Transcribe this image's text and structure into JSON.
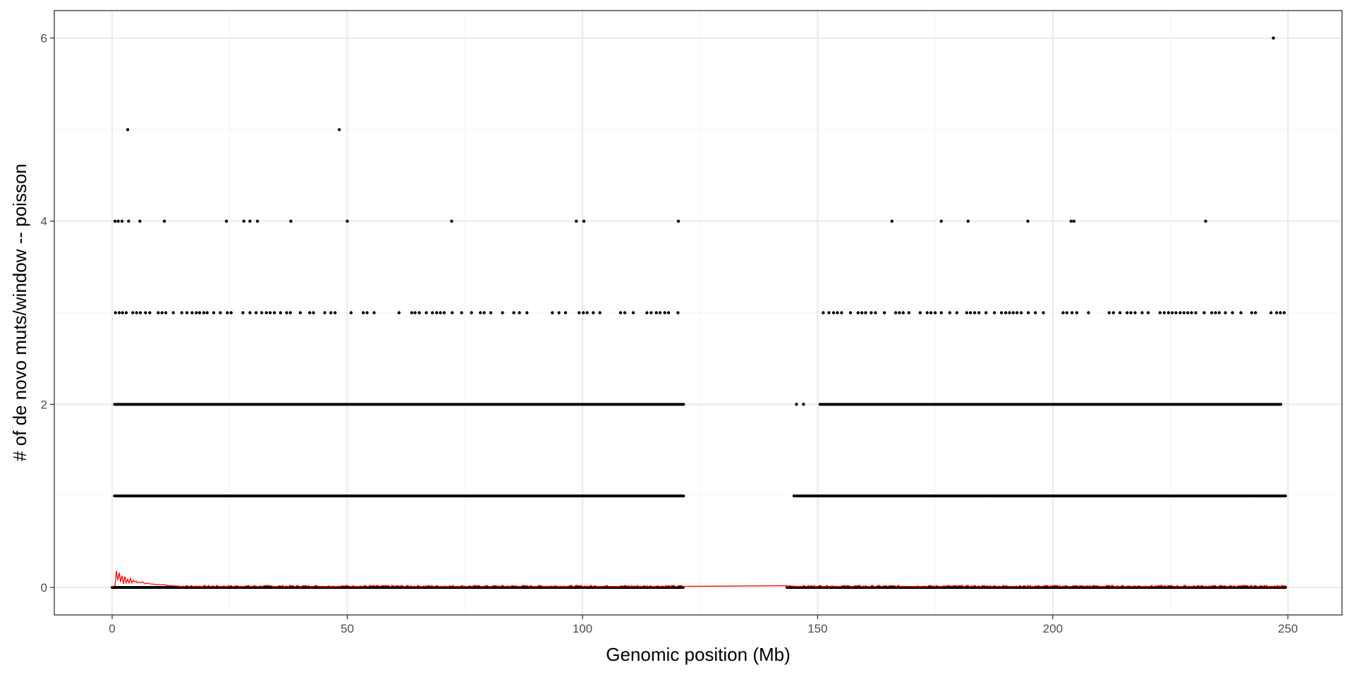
{
  "chart_data": {
    "type": "scatter",
    "title": "",
    "xlabel": "Genomic position (Mb)",
    "ylabel": "# of de novo muts/window -- poisson",
    "xlim": [
      -12.3,
      261.5
    ],
    "ylim": [
      -0.3,
      6.3
    ],
    "x_ticks": [
      0,
      50,
      100,
      150,
      200,
      250
    ],
    "y_ticks": [
      0,
      2,
      4,
      6
    ],
    "grid": true,
    "legend": "none",
    "colors": {
      "points": "#000000",
      "line": "#ff0000",
      "panel_border": "#333333",
      "grid_major": "#ebebeb",
      "grid_minor": "#f5f5f5"
    },
    "points_band_segments": [
      {
        "y": 0,
        "ranges": [
          [
            0,
            121.5
          ],
          [
            143.5,
            249.5
          ]
        ]
      },
      {
        "y": 1,
        "ranges": [
          [
            0.5,
            121.5
          ],
          [
            145.5,
            249.5
          ]
        ]
      },
      {
        "y": 2,
        "ranges": [
          [
            0.5,
            121.5
          ],
          [
            150.5,
            248.5
          ]
        ]
      }
    ],
    "points": [
      {
        "x": 147.0,
        "y": 2
      },
      {
        "x": 145.5,
        "y": 2
      },
      {
        "x": 145.0,
        "y": 1
      },
      {
        "x": 0.7,
        "y": 3
      },
      {
        "x": 1.5,
        "y": 3
      },
      {
        "x": 2.2,
        "y": 3
      },
      {
        "x": 3.0,
        "y": 3
      },
      {
        "x": 4.4,
        "y": 3
      },
      {
        "x": 5.2,
        "y": 3
      },
      {
        "x": 6.0,
        "y": 3
      },
      {
        "x": 7.1,
        "y": 3
      },
      {
        "x": 8.0,
        "y": 3
      },
      {
        "x": 9.8,
        "y": 3
      },
      {
        "x": 10.6,
        "y": 3
      },
      {
        "x": 11.4,
        "y": 3
      },
      {
        "x": 13.0,
        "y": 3
      },
      {
        "x": 14.8,
        "y": 3
      },
      {
        "x": 15.9,
        "y": 3
      },
      {
        "x": 17.0,
        "y": 3
      },
      {
        "x": 17.9,
        "y": 3
      },
      {
        "x": 18.6,
        "y": 3
      },
      {
        "x": 19.5,
        "y": 3
      },
      {
        "x": 20.2,
        "y": 3
      },
      {
        "x": 21.6,
        "y": 3
      },
      {
        "x": 23.0,
        "y": 3
      },
      {
        "x": 24.5,
        "y": 3
      },
      {
        "x": 25.3,
        "y": 3
      },
      {
        "x": 27.8,
        "y": 3
      },
      {
        "x": 29.3,
        "y": 3
      },
      {
        "x": 30.6,
        "y": 3
      },
      {
        "x": 31.8,
        "y": 3
      },
      {
        "x": 32.8,
        "y": 3
      },
      {
        "x": 33.6,
        "y": 3
      },
      {
        "x": 34.5,
        "y": 3
      },
      {
        "x": 35.8,
        "y": 3
      },
      {
        "x": 37.1,
        "y": 3
      },
      {
        "x": 37.9,
        "y": 3
      },
      {
        "x": 40.0,
        "y": 3
      },
      {
        "x": 42.0,
        "y": 3
      },
      {
        "x": 42.8,
        "y": 3
      },
      {
        "x": 45.2,
        "y": 3
      },
      {
        "x": 46.5,
        "y": 3
      },
      {
        "x": 47.4,
        "y": 3
      },
      {
        "x": 50.8,
        "y": 3
      },
      {
        "x": 53.4,
        "y": 3
      },
      {
        "x": 54.2,
        "y": 3
      },
      {
        "x": 55.7,
        "y": 3
      },
      {
        "x": 61.0,
        "y": 3
      },
      {
        "x": 63.7,
        "y": 3
      },
      {
        "x": 64.4,
        "y": 3
      },
      {
        "x": 65.3,
        "y": 3
      },
      {
        "x": 66.8,
        "y": 3
      },
      {
        "x": 68.1,
        "y": 3
      },
      {
        "x": 69.0,
        "y": 3
      },
      {
        "x": 69.8,
        "y": 3
      },
      {
        "x": 70.6,
        "y": 3
      },
      {
        "x": 72.3,
        "y": 3
      },
      {
        "x": 74.3,
        "y": 3
      },
      {
        "x": 76.4,
        "y": 3
      },
      {
        "x": 78.3,
        "y": 3
      },
      {
        "x": 79.1,
        "y": 3
      },
      {
        "x": 80.5,
        "y": 3
      },
      {
        "x": 83.0,
        "y": 3
      },
      {
        "x": 85.4,
        "y": 3
      },
      {
        "x": 86.6,
        "y": 3
      },
      {
        "x": 88.2,
        "y": 3
      },
      {
        "x": 93.6,
        "y": 3
      },
      {
        "x": 95.0,
        "y": 3
      },
      {
        "x": 96.4,
        "y": 3
      },
      {
        "x": 99.3,
        "y": 3
      },
      {
        "x": 100.2,
        "y": 3
      },
      {
        "x": 101.0,
        "y": 3
      },
      {
        "x": 102.3,
        "y": 3
      },
      {
        "x": 103.7,
        "y": 3
      },
      {
        "x": 108.1,
        "y": 3
      },
      {
        "x": 109.0,
        "y": 3
      },
      {
        "x": 110.8,
        "y": 3
      },
      {
        "x": 113.7,
        "y": 3
      },
      {
        "x": 114.6,
        "y": 3
      },
      {
        "x": 115.7,
        "y": 3
      },
      {
        "x": 116.5,
        "y": 3
      },
      {
        "x": 117.5,
        "y": 3
      },
      {
        "x": 118.3,
        "y": 3
      },
      {
        "x": 120.3,
        "y": 3
      },
      {
        "x": 151.2,
        "y": 3
      },
      {
        "x": 152.4,
        "y": 3
      },
      {
        "x": 153.4,
        "y": 3
      },
      {
        "x": 154.2,
        "y": 3
      },
      {
        "x": 155.1,
        "y": 3
      },
      {
        "x": 157.0,
        "y": 3
      },
      {
        "x": 158.6,
        "y": 3
      },
      {
        "x": 159.4,
        "y": 3
      },
      {
        "x": 160.2,
        "y": 3
      },
      {
        "x": 161.4,
        "y": 3
      },
      {
        "x": 162.3,
        "y": 3
      },
      {
        "x": 164.2,
        "y": 3
      },
      {
        "x": 166.6,
        "y": 3
      },
      {
        "x": 167.4,
        "y": 3
      },
      {
        "x": 168.2,
        "y": 3
      },
      {
        "x": 169.4,
        "y": 3
      },
      {
        "x": 171.8,
        "y": 3
      },
      {
        "x": 173.3,
        "y": 3
      },
      {
        "x": 174.1,
        "y": 3
      },
      {
        "x": 175.0,
        "y": 3
      },
      {
        "x": 176.3,
        "y": 3
      },
      {
        "x": 178.1,
        "y": 3
      },
      {
        "x": 179.6,
        "y": 3
      },
      {
        "x": 181.7,
        "y": 3
      },
      {
        "x": 182.5,
        "y": 3
      },
      {
        "x": 183.4,
        "y": 3
      },
      {
        "x": 184.3,
        "y": 3
      },
      {
        "x": 185.8,
        "y": 3
      },
      {
        "x": 187.6,
        "y": 3
      },
      {
        "x": 189.1,
        "y": 3
      },
      {
        "x": 190.0,
        "y": 3
      },
      {
        "x": 190.8,
        "y": 3
      },
      {
        "x": 191.6,
        "y": 3
      },
      {
        "x": 192.4,
        "y": 3
      },
      {
        "x": 193.3,
        "y": 3
      },
      {
        "x": 194.8,
        "y": 3
      },
      {
        "x": 196.3,
        "y": 3
      },
      {
        "x": 198.0,
        "y": 3
      },
      {
        "x": 202.2,
        "y": 3
      },
      {
        "x": 203.0,
        "y": 3
      },
      {
        "x": 204.1,
        "y": 3
      },
      {
        "x": 205.1,
        "y": 3
      },
      {
        "x": 207.6,
        "y": 3
      },
      {
        "x": 212.0,
        "y": 3
      },
      {
        "x": 212.9,
        "y": 3
      },
      {
        "x": 214.3,
        "y": 3
      },
      {
        "x": 215.8,
        "y": 3
      },
      {
        "x": 216.6,
        "y": 3
      },
      {
        "x": 217.5,
        "y": 3
      },
      {
        "x": 219.0,
        "y": 3
      },
      {
        "x": 220.3,
        "y": 3
      },
      {
        "x": 222.8,
        "y": 3
      },
      {
        "x": 223.7,
        "y": 3
      },
      {
        "x": 224.6,
        "y": 3
      },
      {
        "x": 225.4,
        "y": 3
      },
      {
        "x": 226.2,
        "y": 3
      },
      {
        "x": 227.1,
        "y": 3
      },
      {
        "x": 227.9,
        "y": 3
      },
      {
        "x": 228.7,
        "y": 3
      },
      {
        "x": 229.5,
        "y": 3
      },
      {
        "x": 230.4,
        "y": 3
      },
      {
        "x": 232.2,
        "y": 3
      },
      {
        "x": 233.8,
        "y": 3
      },
      {
        "x": 234.6,
        "y": 3
      },
      {
        "x": 235.4,
        "y": 3
      },
      {
        "x": 236.7,
        "y": 3
      },
      {
        "x": 238.2,
        "y": 3
      },
      {
        "x": 240.0,
        "y": 3
      },
      {
        "x": 242.3,
        "y": 3
      },
      {
        "x": 243.1,
        "y": 3
      },
      {
        "x": 246.4,
        "y": 3
      },
      {
        "x": 247.6,
        "y": 3
      },
      {
        "x": 248.4,
        "y": 3
      },
      {
        "x": 249.2,
        "y": 3
      },
      {
        "x": 0.6,
        "y": 4
      },
      {
        "x": 1.3,
        "y": 4
      },
      {
        "x": 2.1,
        "y": 4
      },
      {
        "x": 3.5,
        "y": 4
      },
      {
        "x": 5.9,
        "y": 4
      },
      {
        "x": 11.1,
        "y": 4
      },
      {
        "x": 24.3,
        "y": 4
      },
      {
        "x": 28.0,
        "y": 4
      },
      {
        "x": 29.3,
        "y": 4
      },
      {
        "x": 30.9,
        "y": 4
      },
      {
        "x": 38.0,
        "y": 4
      },
      {
        "x": 50.0,
        "y": 4
      },
      {
        "x": 72.2,
        "y": 4
      },
      {
        "x": 98.7,
        "y": 4
      },
      {
        "x": 100.3,
        "y": 4
      },
      {
        "x": 120.4,
        "y": 4
      },
      {
        "x": 165.8,
        "y": 4
      },
      {
        "x": 176.3,
        "y": 4
      },
      {
        "x": 182.0,
        "y": 4
      },
      {
        "x": 194.7,
        "y": 4
      },
      {
        "x": 203.9,
        "y": 4
      },
      {
        "x": 204.5,
        "y": 4
      },
      {
        "x": 232.5,
        "y": 4
      },
      {
        "x": 3.3,
        "y": 5
      },
      {
        "x": 48.3,
        "y": 5
      },
      {
        "x": 246.9,
        "y": 6
      }
    ],
    "line_series": {
      "name": "",
      "x": [
        0.0,
        0.6,
        0.9,
        1.2,
        1.5,
        1.8,
        2.1,
        2.4,
        2.7,
        3.0,
        3.3,
        3.6,
        3.9,
        4.2,
        4.5,
        4.8,
        5.1,
        5.4,
        5.7,
        6.0,
        6.5,
        7.0,
        7.5,
        8.0,
        9.0,
        10.0,
        11.0,
        12.0,
        14.0,
        121.5,
        143.5,
        249.5
      ],
      "y": [
        0.005,
        0.02,
        0.18,
        0.08,
        0.16,
        0.06,
        0.13,
        0.04,
        0.12,
        0.05,
        0.09,
        0.05,
        0.1,
        0.05,
        0.08,
        0.06,
        0.07,
        0.05,
        0.06,
        0.05,
        0.06,
        0.04,
        0.05,
        0.04,
        0.035,
        0.03,
        0.03,
        0.02,
        0.015,
        0.01,
        0.0,
        0.01
      ],
      "noise_segments": [
        [
          14.0,
          121.5
        ],
        [
          143.5,
          249.5
        ]
      ],
      "noise_level": 0.02
    }
  }
}
